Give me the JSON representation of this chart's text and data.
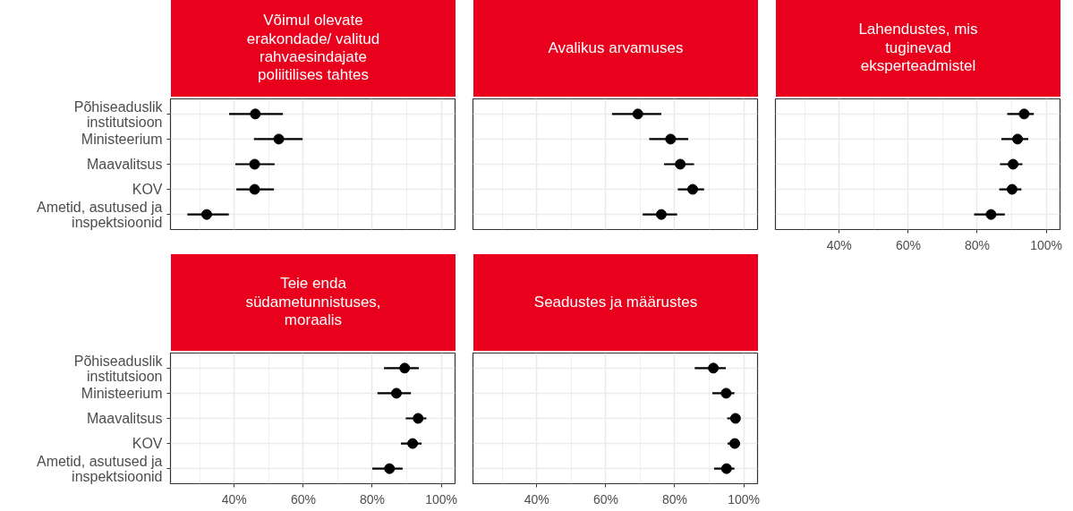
{
  "chart_data": [
    {
      "type": "scatter",
      "orientation": "horizontal",
      "title": "Võimul olevate\nerakondade/ valitud\nrahvaesindajate\npoliitilises tahtes",
      "categories": [
        "Põhiseaduslik\ninstitutsioon",
        "Ministeerium",
        "Maavalitsus",
        "KOV",
        "Ametid, asutused ja\ninspektsioonid"
      ],
      "values": [
        46.1,
        52.9,
        45.9,
        45.9,
        32.0
      ],
      "errors": [
        [
          38.5,
          54.1
        ],
        [
          45.7,
          59.8
        ],
        [
          40.3,
          51.7
        ],
        [
          40.6,
          51.5
        ],
        [
          26.4,
          38.4
        ]
      ],
      "color": "#000000",
      "marker": "circle",
      "xlim": [
        21.5,
        104
      ],
      "xticks": [
        40,
        60,
        80,
        100
      ],
      "grid": true,
      "tick_labels": "y"
    },
    {
      "type": "scatter",
      "orientation": "horizontal",
      "title": "Avalikus arvamuses",
      "categories": [
        null,
        null,
        null,
        null,
        null
      ],
      "values": [
        69.3,
        78.8,
        81.6,
        85.2,
        76.1
      ],
      "errors": [
        [
          61.8,
          76.1
        ],
        [
          72.6,
          83.9
        ],
        [
          76.9,
          85.6
        ],
        [
          80.9,
          88.5
        ],
        [
          70.7,
          80.7
        ]
      ],
      "color": "#000000",
      "marker": "circle",
      "xlim": [
        21.5,
        104
      ],
      "xticks": [
        40,
        60,
        80,
        100
      ],
      "grid": true,
      "tick_labels": false
    },
    {
      "type": "scatter",
      "orientation": "horizontal",
      "title": "Lahendustes, mis\ntuginevad\neksperteadmistel",
      "categories": [
        null,
        null,
        null,
        null,
        null
      ],
      "values": [
        93.6,
        91.7,
        90.4,
        90.1,
        84.0
      ],
      "errors": [
        [
          88.7,
          96.4
        ],
        [
          87.0,
          94.8
        ],
        [
          86.6,
          93.1
        ],
        [
          86.4,
          92.8
        ],
        [
          79.1,
          88.0
        ]
      ],
      "color": "#000000",
      "marker": "circle",
      "xlim": [
        21.5,
        104
      ],
      "xticks": [
        {
          "value": 40,
          "label": "40%"
        },
        {
          "value": 60,
          "label": "60%"
        },
        {
          "value": 80,
          "label": "80%"
        },
        {
          "value": 100,
          "label": "100%"
        }
      ],
      "grid": true,
      "tick_labels": "x"
    },
    {
      "type": "scatter",
      "orientation": "horizontal",
      "title": "Teie enda\nsüdametunnistuses,\nmoraalis",
      "categories": [
        "Põhiseaduslik\ninstitutsioon",
        "Ministeerium",
        "Maavalitsus",
        "KOV",
        "Ametid, asutused ja\ninspektsioonid"
      ],
      "values": [
        89.4,
        87.0,
        93.3,
        91.7,
        85.0
      ],
      "errors": [
        [
          83.4,
          93.5
        ],
        [
          81.5,
          91.2
        ],
        [
          89.7,
          95.7
        ],
        [
          88.3,
          94.3
        ],
        [
          80.0,
          88.8
        ]
      ],
      "color": "#000000",
      "marker": "circle",
      "xlim": [
        21.5,
        104
      ],
      "xticks": [
        {
          "value": 40,
          "label": "40%"
        },
        {
          "value": 60,
          "label": "60%"
        },
        {
          "value": 80,
          "label": "80%"
        },
        {
          "value": 100,
          "label": "100%"
        }
      ],
      "grid": true
    },
    {
      "type": "scatter",
      "orientation": "horizontal",
      "title": "Seadustes ja määrustes",
      "categories": [
        null,
        null,
        null,
        null,
        null
      ],
      "values": [
        91.2,
        94.9,
        97.6,
        97.4,
        95.0
      ],
      "errors": [
        [
          85.8,
          94.8
        ],
        [
          90.9,
          97.3
        ],
        [
          95.2,
          98.7
        ],
        [
          95.3,
          98.6
        ],
        [
          91.4,
          97.3
        ]
      ],
      "color": "#000000",
      "marker": "circle",
      "xlim": [
        21.5,
        104
      ],
      "xticks": [
        {
          "value": 40,
          "label": "40%"
        },
        {
          "value": 60,
          "label": "60%"
        },
        {
          "value": 80,
          "label": "80%"
        },
        {
          "value": 100,
          "label": "100%"
        }
      ],
      "grid": true,
      "tick_labels": "x"
    }
  ]
}
